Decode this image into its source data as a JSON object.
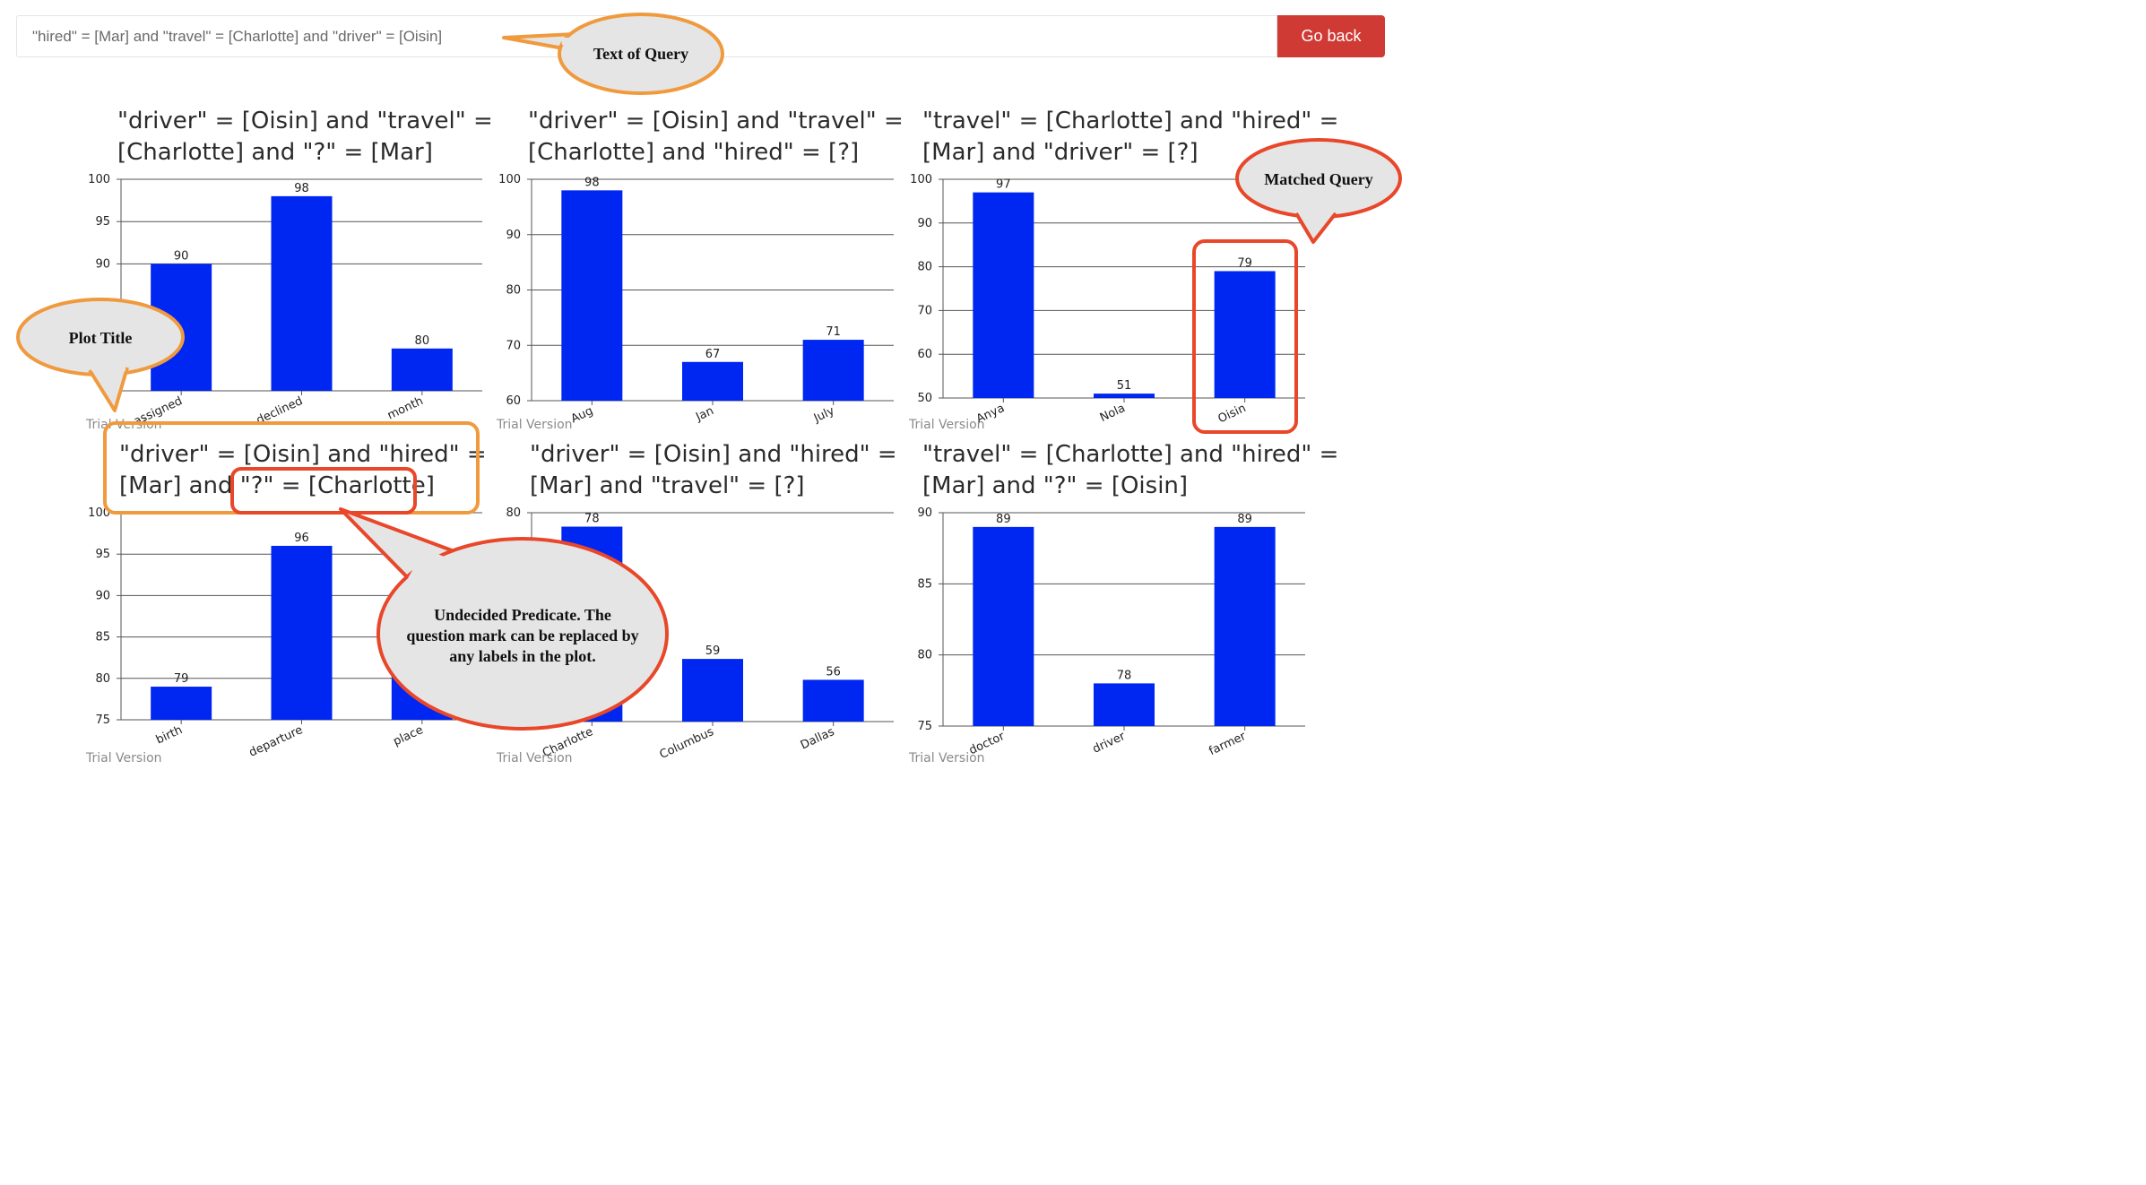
{
  "query": {
    "text": "\"hired\" = [Mar] and \"travel\" = [Charlotte] and \"driver\" = [Oisin]",
    "go_back_label": "Go back"
  },
  "trial_label": "Trial Version",
  "colors": {
    "bar": "#0026f2",
    "go_back": "#cf3a34",
    "callout_orange": "#f09a3e",
    "callout_red": "#e8472a",
    "callout_fill": "#e5e5e5"
  },
  "callouts": {
    "text_of_query": "Text of Query",
    "matched_query": "Matched Query",
    "plot_title": "Plot Title",
    "undecided": [
      "Undecided Predicate. The",
      "question mark can be replaced by",
      "any labels in the plot."
    ]
  },
  "chart_data": [
    {
      "type": "bar",
      "title_lines": [
        "\"driver\" = [Oisin] and \"travel\" =",
        "[Charlotte] and \"?\" = [Mar]"
      ],
      "categories": [
        "assigned",
        "declined",
        "month"
      ],
      "values": [
        90,
        98,
        80
      ],
      "ylim": [
        75,
        100
      ],
      "yticks": [
        100,
        95,
        90
      ]
    },
    {
      "type": "bar",
      "title_lines": [
        "\"driver\" = [Oisin] and \"travel\" =",
        "[Charlotte] and \"hired\" = [?]"
      ],
      "categories": [
        "Aug",
        "Jan",
        "July"
      ],
      "values": [
        98,
        67,
        71
      ],
      "ylim": [
        60,
        100
      ],
      "yticks": [
        100,
        90,
        80,
        70,
        60
      ]
    },
    {
      "type": "bar",
      "title_lines": [
        "\"travel\" = [Charlotte] and \"hired\" =",
        "[Mar] and \"driver\" = [?]"
      ],
      "categories": [
        "Anya",
        "Nola",
        "Oisin"
      ],
      "values": [
        97,
        51,
        79
      ],
      "ylim": [
        50,
        100
      ],
      "yticks": [
        100,
        90,
        80,
        70,
        60,
        50
      ]
    },
    {
      "type": "bar",
      "title_lines": [
        "\"driver\" = [Oisin] and \"hired\" =",
        "[Mar] and \"?\" = [Charlotte]"
      ],
      "categories": [
        "birth",
        "departure",
        "place"
      ],
      "values": [
        79,
        96,
        84
      ],
      "ylim": [
        75,
        100
      ],
      "yticks": [
        100,
        95,
        90,
        85,
        80,
        75
      ]
    },
    {
      "type": "bar",
      "title_lines": [
        "\"driver\" = [Oisin] and \"hired\" =",
        "[Mar] and \"travel\" = [?]"
      ],
      "categories": [
        "Charlotte",
        "Columbus",
        "Dallas"
      ],
      "values": [
        78,
        59,
        56
      ],
      "ylim": [
        50,
        80
      ],
      "yticks": [
        80
      ]
    },
    {
      "type": "bar",
      "title_lines": [
        "\"travel\" = [Charlotte] and \"hired\" =",
        "[Mar] and \"?\" = [Oisin]"
      ],
      "categories": [
        "doctor",
        "driver",
        "farmer"
      ],
      "values": [
        89,
        78,
        89
      ],
      "ylim": [
        75,
        90
      ],
      "yticks": [
        90,
        85,
        80,
        75
      ]
    }
  ]
}
